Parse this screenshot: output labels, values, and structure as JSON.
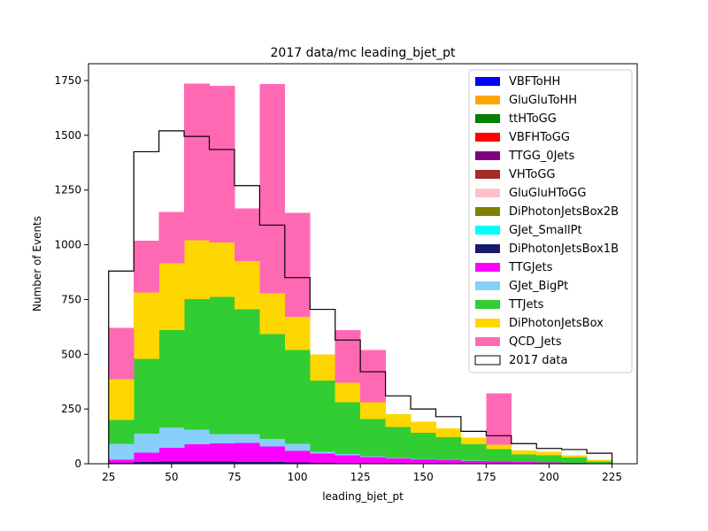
{
  "chart_data": {
    "type": "bar",
    "title": "2017 data/mc leading_bjet_pt",
    "xlabel": "leading_bjet_pt",
    "ylabel": "Number of Events",
    "xlim": [
      17,
      235
    ],
    "ylim": [
      0,
      1750
    ],
    "xticks": [
      25,
      50,
      75,
      100,
      125,
      150,
      175,
      200,
      225
    ],
    "yticks": [
      0,
      250,
      500,
      750,
      1000,
      1250,
      1500,
      1750
    ],
    "bin_edges": [
      25,
      35,
      45,
      55,
      65,
      75,
      85,
      95,
      105,
      115,
      125,
      135,
      145,
      155,
      165,
      175,
      185,
      195,
      205,
      215,
      225
    ],
    "stacked": true,
    "legend_position": "top-right",
    "series": [
      {
        "name": "VBFToHH",
        "color": "#0000ff",
        "values": [
          0,
          0,
          0,
          0,
          0,
          0,
          0,
          0,
          0,
          0,
          0,
          0,
          0,
          0,
          0,
          0,
          0,
          0,
          0,
          0
        ]
      },
      {
        "name": "GluGluToHH",
        "color": "#ffa500",
        "values": [
          0,
          0,
          0,
          0,
          0,
          0,
          0,
          0,
          0,
          0,
          0,
          0,
          0,
          0,
          0,
          0,
          0,
          0,
          0,
          0
        ]
      },
      {
        "name": "ttHToGG",
        "color": "#008000",
        "values": [
          0,
          0,
          0,
          0,
          0,
          0,
          0,
          0,
          0,
          0,
          0,
          0,
          0,
          0,
          0,
          0,
          0,
          0,
          0,
          0
        ]
      },
      {
        "name": "VBFHToGG",
        "color": "#ff0000",
        "values": [
          0,
          0,
          0,
          0,
          0,
          0,
          0,
          0,
          0,
          0,
          0,
          0,
          0,
          0,
          0,
          0,
          0,
          0,
          0,
          0
        ]
      },
      {
        "name": "TTGG_0Jets",
        "color": "#800080",
        "values": [
          0,
          0,
          0,
          0,
          0,
          0,
          0,
          0,
          0,
          0,
          0,
          0,
          0,
          0,
          0,
          0,
          0,
          0,
          0,
          0
        ]
      },
      {
        "name": "VHToGG",
        "color": "#a52a2a",
        "values": [
          0,
          0,
          0,
          0,
          0,
          0,
          0,
          0,
          0,
          0,
          0,
          0,
          0,
          0,
          0,
          0,
          0,
          0,
          0,
          0
        ]
      },
      {
        "name": "GluGluHToGG",
        "color": "#ffc0cb",
        "values": [
          0,
          0,
          0,
          0,
          0,
          0,
          0,
          0,
          0,
          0,
          0,
          0,
          0,
          0,
          0,
          0,
          0,
          0,
          0,
          0
        ]
      },
      {
        "name": "DiPhotonJetsBox2B",
        "color": "#808000",
        "values": [
          0,
          0,
          0,
          0,
          0,
          0,
          0,
          0,
          0,
          0,
          0,
          0,
          0,
          0,
          0,
          0,
          0,
          0,
          0,
          0
        ]
      },
      {
        "name": "GJet_SmallPt",
        "color": "#00ffff",
        "values": [
          0,
          0,
          0,
          0,
          0,
          0,
          0,
          0,
          0,
          0,
          0,
          0,
          0,
          0,
          0,
          0,
          0,
          0,
          0,
          0
        ]
      },
      {
        "name": "DiPhotonJetsBox1B",
        "color": "#191970",
        "values": [
          5,
          8,
          10,
          10,
          10,
          8,
          8,
          6,
          4,
          3,
          3,
          2,
          2,
          2,
          1,
          1,
          1,
          1,
          0,
          0
        ]
      },
      {
        "name": "TTGJets",
        "color": "#ff00ff",
        "values": [
          13,
          42,
          62,
          78,
          83,
          86,
          70,
          52,
          42,
          35,
          27,
          22,
          18,
          14,
          12,
          9,
          7,
          5,
          4,
          3
        ]
      },
      {
        "name": "GJet_BigPt",
        "color": "#87cefa",
        "values": [
          72,
          88,
          93,
          68,
          43,
          42,
          35,
          32,
          9,
          7,
          5,
          3,
          2,
          1,
          1,
          1,
          1,
          0,
          0,
          0
        ]
      },
      {
        "name": "TTJets",
        "color": "#32cd32",
        "values": [
          110,
          340,
          445,
          595,
          625,
          570,
          480,
          430,
          325,
          235,
          170,
          140,
          120,
          105,
          75,
          55,
          33,
          33,
          25,
          8
        ]
      },
      {
        "name": "DiPhotonJetsBox",
        "color": "#ffd700",
        "values": [
          185,
          305,
          305,
          270,
          250,
          220,
          185,
          150,
          120,
          90,
          75,
          60,
          50,
          40,
          30,
          20,
          18,
          15,
          10,
          8
        ]
      },
      {
        "name": "QCD_Jets",
        "color": "#ff69b4",
        "values": [
          235,
          235,
          235,
          715,
          715,
          240,
          955,
          475,
          0,
          240,
          240,
          0,
          0,
          0,
          0,
          235,
          0,
          0,
          0,
          0
        ]
      }
    ],
    "data": {
      "name": "2017 data",
      "values": [
        880,
        1425,
        1520,
        1495,
        1435,
        1270,
        1090,
        850,
        705,
        565,
        420,
        310,
        250,
        215,
        148,
        128,
        92,
        70,
        65,
        48
      ]
    }
  }
}
